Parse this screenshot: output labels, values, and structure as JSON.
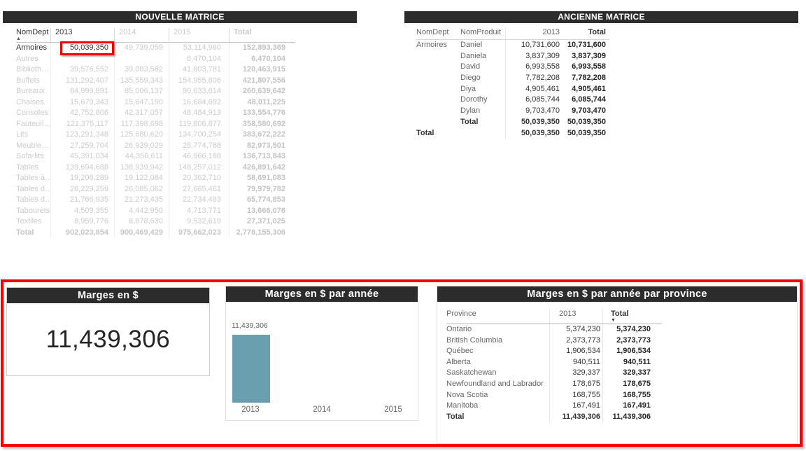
{
  "icons": {
    "sort_asc": "▲",
    "sort_desc": "▼"
  },
  "colors": {
    "titlebar_bg": "#2c2c2c",
    "bar_teal": "#6a9fb0",
    "annotation_red": "#f40000",
    "faded_text": "#cbcbcb",
    "dark_text": "#333333"
  },
  "nouvelle_matrice": {
    "title": "NOUVELLE MATRICE",
    "columns": [
      "NomDept",
      "2013",
      "2014",
      "2015",
      "Total"
    ],
    "fields": [
      "dept",
      "v2013",
      "v2014",
      "v2015",
      "total"
    ],
    "rows": [
      {
        "dept": "Armoires",
        "v2013": "50,039,350",
        "v2014": "49,739,059",
        "v2015": "53,114,960",
        "total": "152,893,369",
        "active": true,
        "highlight": "v2013"
      },
      {
        "dept": "Autres",
        "v2013": "",
        "v2014": "",
        "v2015": "6,470,104",
        "total": "6,470,104"
      },
      {
        "dept": "Biblioth…",
        "v2013": "39,576,552",
        "v2014": "39,083,582",
        "v2015": "41,803,781",
        "total": "120,463,915"
      },
      {
        "dept": "Buffets",
        "v2013": "131,292,407",
        "v2014": "135,559,343",
        "v2015": "154,955,806",
        "total": "421,807,556"
      },
      {
        "dept": "Bureaux",
        "v2013": "84,999,891",
        "v2014": "85,006,137",
        "v2015": "90,633,614",
        "total": "260,639,642"
      },
      {
        "dept": "Chaises",
        "v2013": "15,679,343",
        "v2014": "15,647,190",
        "v2015": "16,684,692",
        "total": "48,011,225"
      },
      {
        "dept": "Consoles",
        "v2013": "42,752,806",
        "v2014": "42,317,057",
        "v2015": "48,484,913",
        "total": "133,554,776"
      },
      {
        "dept": "Fauteuil…",
        "v2013": "121,375,117",
        "v2014": "117,398,698",
        "v2015": "119,806,877",
        "total": "358,580,692"
      },
      {
        "dept": "Lits",
        "v2013": "123,291,348",
        "v2014": "125,680,620",
        "v2015": "134,700,254",
        "total": "383,672,222"
      },
      {
        "dept": "Meuble…",
        "v2013": "27,259,704",
        "v2014": "26,939,029",
        "v2015": "28,774,768",
        "total": "82,973,501"
      },
      {
        "dept": "Sofa-lits",
        "v2013": "45,391,034",
        "v2014": "44,356,611",
        "v2015": "46,966,198",
        "total": "136,713,843"
      },
      {
        "dept": "Tables",
        "v2013": "139,694,688",
        "v2014": "138,939,942",
        "v2015": "148,257,012",
        "total": "426,891,642"
      },
      {
        "dept": "Tables à…",
        "v2013": "19,206,289",
        "v2014": "19,122,084",
        "v2015": "20,362,710",
        "total": "58,691,083"
      },
      {
        "dept": "Tables d…",
        "v2013": "26,229,259",
        "v2014": "26,085,062",
        "v2015": "27,665,461",
        "total": "79,979,782"
      },
      {
        "dept": "Tables d…",
        "v2013": "21,766,935",
        "v2014": "21,273,435",
        "v2015": "22,734,483",
        "total": "65,774,853"
      },
      {
        "dept": "Tabourets",
        "v2013": "4,509,355",
        "v2014": "4,442,950",
        "v2015": "4,713,771",
        "total": "13,666,076"
      },
      {
        "dept": "Textiles",
        "v2013": "8,959,776",
        "v2014": "8,878,630",
        "v2015": "9,532,619",
        "total": "27,371,025"
      },
      {
        "dept": "Total",
        "v2013": "902,023,854",
        "v2014": "900,469,429",
        "v2015": "975,662,023",
        "total": "2,778,155,306",
        "total_row": true
      }
    ]
  },
  "ancienne_matrice": {
    "title": "ANCIENNE MATRICE",
    "columns": [
      "NomDept",
      "NomProduit",
      "2013",
      "Total"
    ],
    "fields": [
      "dept",
      "produit",
      "v2013",
      "total"
    ],
    "rows": [
      {
        "dept": "Armoires",
        "produit": "Daniel",
        "v2013": "10,731,600",
        "total": "10,731,600"
      },
      {
        "dept": "",
        "produit": "Daniela",
        "v2013": "3,837,309",
        "total": "3,837,309"
      },
      {
        "dept": "",
        "produit": "David",
        "v2013": "6,993,558",
        "total": "6,993,558"
      },
      {
        "dept": "",
        "produit": "Diego",
        "v2013": "7,782,208",
        "total": "7,782,208"
      },
      {
        "dept": "",
        "produit": "Diya",
        "v2013": "4,905,461",
        "total": "4,905,461"
      },
      {
        "dept": "",
        "produit": "Dorothy",
        "v2013": "6,085,744",
        "total": "6,085,744"
      },
      {
        "dept": "",
        "produit": "Dylan",
        "v2013": "9,703,470",
        "total": "9,703,470"
      },
      {
        "dept": "",
        "produit": "Total",
        "v2013": "50,039,350",
        "total": "50,039,350",
        "bold": true
      },
      {
        "dept": "Total",
        "produit": "",
        "v2013": "50,039,350",
        "total": "50,039,350",
        "bold": true
      }
    ]
  },
  "kpi_card": {
    "title": "Marges en $",
    "value": "11,439,306"
  },
  "bar_chart": {
    "title": "Marges en $ par année",
    "value_label": "11,439,306",
    "categories": [
      "2013",
      "2014",
      "2015"
    ]
  },
  "province_table": {
    "title": "Marges en $ par année par province",
    "columns": [
      "Province",
      "2013",
      "Total"
    ],
    "fields": [
      "province",
      "v2013",
      "total"
    ],
    "rows": [
      {
        "province": "Ontario",
        "v2013": "5,374,230",
        "total": "5,374,230"
      },
      {
        "province": "British Columbia",
        "v2013": "2,373,773",
        "total": "2,373,773"
      },
      {
        "province": "Québec",
        "v2013": "1,906,534",
        "total": "1,906,534"
      },
      {
        "province": "Alberta",
        "v2013": "940,511",
        "total": "940,511"
      },
      {
        "province": "Saskatchewan",
        "v2013": "329,337",
        "total": "329,337"
      },
      {
        "province": "Newfoundland and Labrador",
        "v2013": "178,675",
        "total": "178,675"
      },
      {
        "province": "Nova Scotia",
        "v2013": "168,755",
        "total": "168,755"
      },
      {
        "province": "Manitoba",
        "v2013": "167,491",
        "total": "167,491"
      },
      {
        "province": "Total",
        "v2013": "11,439,306",
        "total": "11,439,306",
        "bold": true
      }
    ]
  },
  "chart_data": [
    {
      "type": "card",
      "title": "Marges en $",
      "value": 11439306
    },
    {
      "type": "bar",
      "title": "Marges en $ par année",
      "categories": [
        "2013",
        "2014",
        "2015"
      ],
      "values": [
        11439306,
        null,
        null
      ],
      "data_labels": [
        "11,439,306",
        "",
        ""
      ],
      "bar_color": "#6a9fb0",
      "xlabel": "",
      "ylabel": "",
      "ylim": [
        0,
        12500000
      ],
      "grid": false,
      "legend": false
    },
    {
      "type": "table",
      "title": "Marges en $ par année par province",
      "columns": [
        "Province",
        "2013",
        "Total"
      ],
      "rows": [
        [
          "Ontario",
          5374230,
          5374230
        ],
        [
          "British Columbia",
          2373773,
          2373773
        ],
        [
          "Québec",
          1906534,
          1906534
        ],
        [
          "Alberta",
          940511,
          940511
        ],
        [
          "Saskatchewan",
          329337,
          329337
        ],
        [
          "Newfoundland and Labrador",
          178675,
          178675
        ],
        [
          "Nova Scotia",
          168755,
          168755
        ],
        [
          "Manitoba",
          167491,
          167491
        ],
        [
          "Total",
          11439306,
          11439306
        ]
      ]
    }
  ]
}
